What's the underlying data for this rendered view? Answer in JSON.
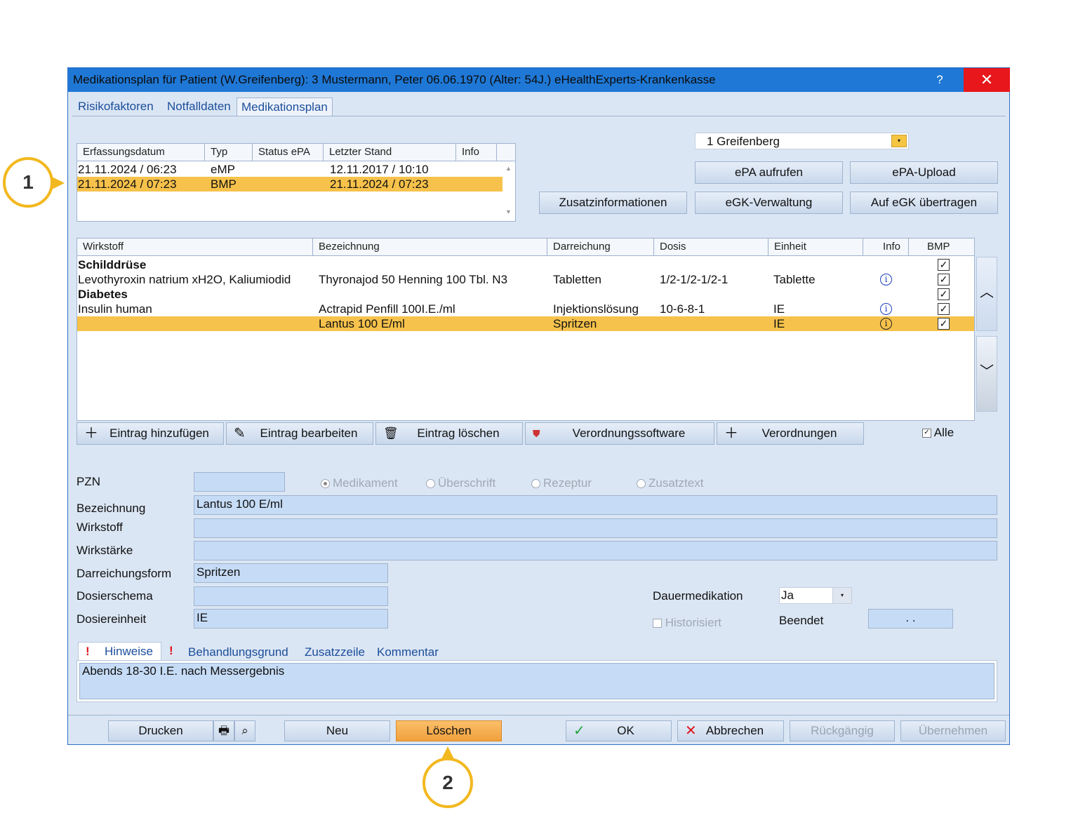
{
  "window": {
    "title": "Medikationsplan für Patient (W.Greifenberg): 3  Mustermann, Peter 06.06.1970  (Alter: 54J.)  eHealthExperts-Krankenkasse",
    "help": "?",
    "close": "✕"
  },
  "tabs": [
    "Risikofaktoren",
    "Notfalldaten",
    "Medikationsplan"
  ],
  "plans_table": {
    "headers": [
      "Erfassungsdatum",
      "Typ",
      "Status ePA",
      "Letzter Stand",
      "Info"
    ],
    "rows": [
      {
        "date": "21.11.2024 / 06:23",
        "type": "eMP",
        "status": "",
        "last": "12.11.2017 / 10:10",
        "info": ""
      },
      {
        "date": "21.11.2024 / 07:23",
        "type": "BMP",
        "status": "",
        "last": "21.11.2024 / 07:23",
        "info": ""
      }
    ]
  },
  "doctor_select": {
    "value": "1 Greifenberg"
  },
  "right_buttons": {
    "epa_open": "ePA aufrufen",
    "epa_upload": "ePA-Upload",
    "extra_info": "Zusatzinformationen",
    "egk_admin": "eGK-Verwaltung",
    "egk_transfer": "Auf eGK übertragen"
  },
  "meds_table": {
    "headers": [
      "Wirkstoff",
      "Bezeichnung",
      "Darreichung",
      "Dosis",
      "Einheit",
      "Info",
      "BMP"
    ],
    "rows": [
      {
        "wirkstoff": "Schilddrüse",
        "bezeichnung": "",
        "darreichung": "",
        "dosis": "",
        "einheit": ""
      },
      {
        "wirkstoff": "Levothyroxin natrium xH2O, Kaliumiodid",
        "bezeichnung": "Thyronajod 50 Henning 100 Tbl. N3",
        "darreichung": "Tabletten",
        "dosis": "1/2-1/2-1/2-1",
        "einheit": "Tablette"
      },
      {
        "wirkstoff": "Diabetes",
        "bezeichnung": "",
        "darreichung": "",
        "dosis": "",
        "einheit": ""
      },
      {
        "wirkstoff": "Insulin human",
        "bezeichnung": "Actrapid Penfill 100I.E./ml",
        "darreichung": "Injektionslösung",
        "dosis": "10-6-8-1",
        "einheit": "IE"
      },
      {
        "wirkstoff": "",
        "bezeichnung": "Lantus 100 E/ml",
        "darreichung": "Spritzen",
        "dosis": "",
        "einheit": "IE"
      }
    ]
  },
  "action_buttons": {
    "add": "Eintrag hinzufügen",
    "edit": "Eintrag bearbeiten",
    "delete": "Eintrag löschen",
    "software": "Verordnungssoftware",
    "prescriptions": "Verordnungen",
    "all": "Alle"
  },
  "form": {
    "pzn_label": "PZN",
    "pzn_value": "",
    "radios": [
      "Medikament",
      "Überschrift",
      "Rezeptur",
      "Zusatztext"
    ],
    "bezeichnung_label": "Bezeichnung",
    "bezeichnung_value": "Lantus 100 E/ml",
    "wirkstoff_label": "Wirkstoff",
    "wirkstoff_value": "",
    "wirkstaerke_label": "Wirkstärke",
    "wirkstaerke_value": "",
    "darreichung_label": "Darreichungsform",
    "darreichung_value": "Spritzen",
    "dosierschema_label": "Dosierschema",
    "dosierschema_value": "",
    "dosiereinheit_label": "Dosiereinheit",
    "dosiereinheit_value": "IE",
    "dauer_label": "Dauermedikation",
    "dauer_value": "Ja",
    "historisiert_label": "Historisiert",
    "beendet_label": "Beendet",
    "beendet_value": ". ."
  },
  "note_tabs": {
    "excl": "!",
    "hinweise": "Hinweise",
    "behandlung": "Behandlungsgrund",
    "zusatz": "Zusatzzeile",
    "kommentar": "Kommentar"
  },
  "note_text": "Abends 18-30 I.E. nach Messergebnis",
  "bottom": {
    "print": "Drucken",
    "new": "Neu",
    "delete": "Löschen",
    "ok": "OK",
    "cancel": "Abbrechen",
    "undo": "Rückgängig",
    "apply": "Übernehmen"
  },
  "callouts": [
    "1",
    "2"
  ]
}
